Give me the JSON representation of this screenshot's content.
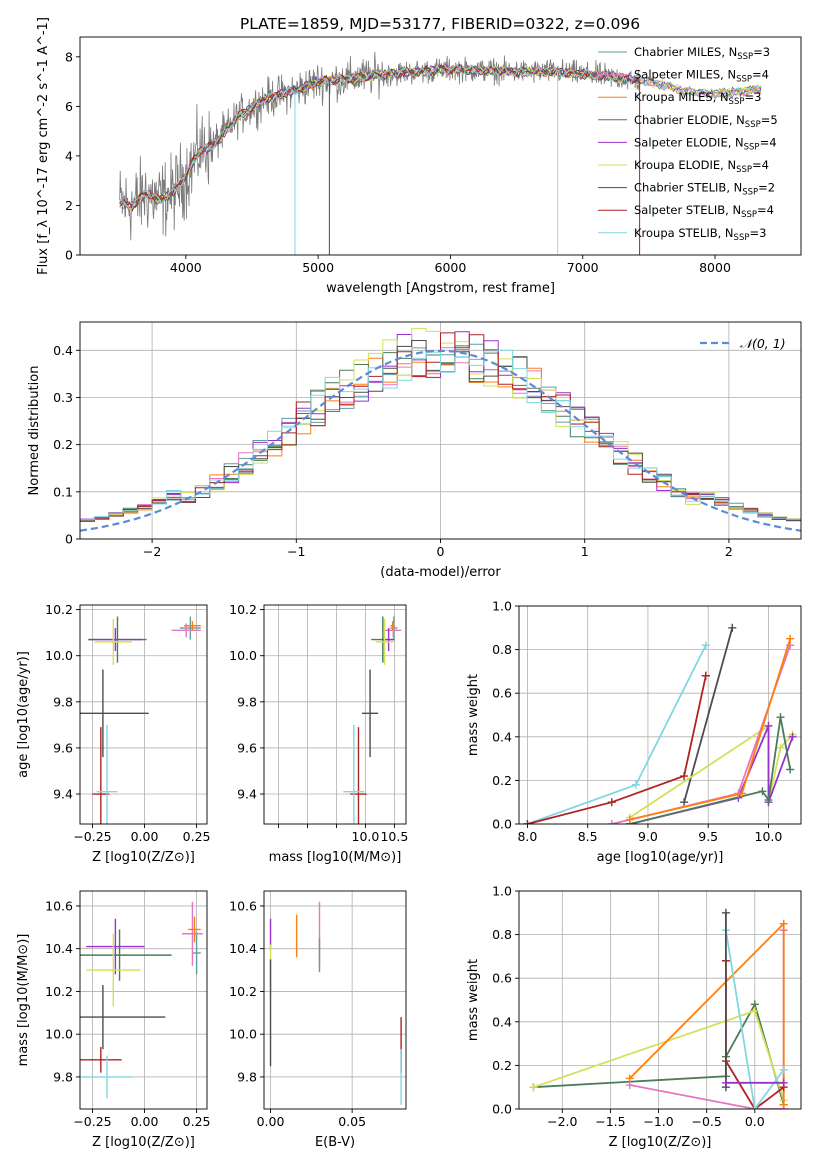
{
  "figure": {
    "title": "PLATE=1859, MJD=53177, FIBERID=0322, z=0.096"
  },
  "colors": {
    "chabrier_miles": "#5f9ea0",
    "salpeter_miles": "#e377c2",
    "kroupa_miles": "#ff7f0e",
    "chabrier_elodie": "#4a7c59",
    "salpeter_elodie": "#9932cc",
    "kroupa_elodie": "#d4e157",
    "chabrier_stelib": "#4d4d4d",
    "salpeter_stelib": "#b22222",
    "kroupa_stelib": "#80d8e0",
    "normal_curve": "#5b8bd8"
  },
  "chart_data": [
    {
      "id": "spectrum",
      "type": "line",
      "xlabel": "wavelength [Angstrom, rest frame]",
      "ylabel": "Flux [f_λ 10^-17 erg cm^-2 s^-1 A^-1]",
      "xlim": [
        3200,
        8650
      ],
      "ylim": [
        0,
        8.8
      ],
      "xticks": [
        4000,
        5000,
        6000,
        7000,
        8000
      ],
      "yticks": [
        0,
        2,
        4,
        6,
        8
      ],
      "legend_position": "top-right",
      "series": [
        {
          "name": "Chabrier MILES, N_SSP=3",
          "key": "chabrier_miles"
        },
        {
          "name": "Salpeter MILES, N_SSP=4",
          "key": "salpeter_miles"
        },
        {
          "name": "Kroupa MILES, N_SSP=3",
          "key": "kroupa_miles"
        },
        {
          "name": "Chabrier ELODIE, N_SSP=5",
          "key": "chabrier_elodie"
        },
        {
          "name": "Salpeter ELODIE, N_SSP=4",
          "key": "salpeter_elodie"
        },
        {
          "name": "Kroupa ELODIE, N_SSP=4",
          "key": "kroupa_elodie"
        },
        {
          "name": "Chabrier STELIB, N_SSP=2",
          "key": "chabrier_stelib"
        },
        {
          "name": "Salpeter STELIB, N_SSP=4",
          "key": "salpeter_stelib"
        },
        {
          "name": "Kroupa STELIB, N_SSP=3",
          "key": "kroupa_stelib"
        }
      ],
      "continuum": {
        "x": [
          3500,
          3600,
          3700,
          3800,
          3900,
          4000,
          4100,
          4200,
          4400,
          4600,
          4800,
          5000,
          5200,
          5500,
          6000,
          6500,
          6800,
          7000,
          7200,
          7500,
          7800,
          8000,
          8200,
          8350
        ],
        "y": [
          2.1,
          2.0,
          2.5,
          2.2,
          2.5,
          3.2,
          4.2,
          4.4,
          5.6,
          6.3,
          6.6,
          7.0,
          7.1,
          7.3,
          7.5,
          7.4,
          7.4,
          7.3,
          7.2,
          7.0,
          6.6,
          6.5,
          6.6,
          6.7
        ]
      }
    },
    {
      "id": "residuals",
      "type": "bar",
      "xlabel": "(data-model)/error",
      "ylabel": "Normed distribution",
      "xlim": [
        -2.5,
        2.5
      ],
      "ylim": [
        0,
        0.46
      ],
      "xticks": [
        -2,
        -1,
        0,
        1,
        2
      ],
      "yticks": [
        0.0,
        0.1,
        0.2,
        0.3,
        0.4
      ],
      "grid": true,
      "legend": "𝒩(0, 1)",
      "legend_position": "top-right"
    },
    {
      "id": "age_vs_Z",
      "type": "scatter",
      "xlabel": "Z [log10(Z/Z⊙)]",
      "ylabel": "age [log10(age/yr)]",
      "xlim": [
        -0.31,
        0.3
      ],
      "ylim": [
        9.27,
        10.22
      ],
      "xticks": [
        -0.25,
        0.0,
        0.25
      ],
      "yticks": [
        9.4,
        9.6,
        9.8,
        10.0,
        10.2
      ],
      "grid": true,
      "points": [
        {
          "key": "chabrier_miles",
          "x": 0.22,
          "y": 10.12,
          "xerr": 0.05,
          "yerr": 0.05
        },
        {
          "key": "salpeter_miles",
          "x": 0.2,
          "y": 10.11,
          "xerr": 0.07,
          "yerr": 0.03
        },
        {
          "key": "kroupa_miles",
          "x": 0.23,
          "y": 10.13,
          "xerr": 0.04,
          "yerr": 0.02
        },
        {
          "key": "chabrier_elodie",
          "x": -0.13,
          "y": 10.07,
          "xerr": 0.14,
          "yerr": 0.1
        },
        {
          "key": "salpeter_elodie",
          "x": -0.14,
          "y": 10.07,
          "xerr": 0.13,
          "yerr": 0.05
        },
        {
          "key": "kroupa_elodie",
          "x": -0.15,
          "y": 10.06,
          "xerr": 0.09,
          "yerr": 0.1
        },
        {
          "key": "chabrier_stelib",
          "x": -0.2,
          "y": 9.75,
          "xerr": 0.22,
          "yerr": 0.19
        },
        {
          "key": "salpeter_stelib",
          "x": -0.21,
          "y": 9.4,
          "xerr": 0.04,
          "yerr": 0.29
        },
        {
          "key": "kroupa_stelib",
          "x": -0.18,
          "y": 9.41,
          "xerr": 0.05,
          "yerr": 0.29
        }
      ]
    },
    {
      "id": "age_vs_mass",
      "type": "scatter",
      "xlabel": "mass [log10(M/M⊙)]",
      "xlim": [
        8.25,
        10.7
      ],
      "ylim": [
        9.27,
        10.22
      ],
      "xticks": [
        8.5,
        9.0,
        9.5,
        10.0,
        10.5
      ],
      "xticklabels": [
        "",
        "",
        "",
        "10.0",
        "10.5"
      ],
      "yticks": [
        9.4,
        9.6,
        9.8,
        10.0,
        10.2
      ],
      "grid": true,
      "points": [
        {
          "key": "chabrier_miles",
          "x": 10.49,
          "y": 10.12,
          "xerr": 0.06,
          "yerr": 0.05
        },
        {
          "key": "salpeter_miles",
          "x": 10.48,
          "y": 10.11,
          "xerr": 0.14,
          "yerr": 0.03
        },
        {
          "key": "kroupa_miles",
          "x": 10.47,
          "y": 10.13,
          "xerr": 0.04,
          "yerr": 0.02
        },
        {
          "key": "chabrier_elodie",
          "x": 10.3,
          "y": 10.07,
          "xerr": 0.2,
          "yerr": 0.1
        },
        {
          "key": "salpeter_elodie",
          "x": 10.4,
          "y": 10.07,
          "xerr": 0.1,
          "yerr": 0.05
        },
        {
          "key": "kroupa_elodie",
          "x": 10.33,
          "y": 10.06,
          "xerr": 0.15,
          "yerr": 0.1
        },
        {
          "key": "chabrier_stelib",
          "x": 10.08,
          "y": 9.75,
          "xerr": 0.14,
          "yerr": 0.19
        },
        {
          "key": "salpeter_stelib",
          "x": 9.88,
          "y": 9.4,
          "xerr": 0.14,
          "yerr": 0.29
        },
        {
          "key": "kroupa_stelib",
          "x": 9.8,
          "y": 9.41,
          "xerr": 0.18,
          "yerr": 0.29
        }
      ]
    },
    {
      "id": "mass_weight_vs_age",
      "type": "line",
      "xlabel": "age [log10(age/yr)]",
      "ylabel": "mass weight",
      "xlim": [
        7.93,
        10.27
      ],
      "ylim": [
        0,
        1.0
      ],
      "xticks": [
        8.0,
        8.5,
        9.0,
        9.5,
        10.0
      ],
      "yticks": [
        0.0,
        0.2,
        0.4,
        0.6,
        0.8,
        1.0
      ],
      "grid": true,
      "series": [
        {
          "key": "kroupa_stelib",
          "x": [
            8.0,
            8.9,
            9.48
          ],
          "y": [
            0.0,
            0.18,
            0.82
          ]
        },
        {
          "key": "salpeter_stelib",
          "x": [
            8.0,
            8.7,
            9.3,
            9.48,
            9.48
          ],
          "y": [
            0.0,
            0.1,
            0.22,
            0.68,
            0.68
          ]
        },
        {
          "key": "chabrier_stelib",
          "x": [
            9.3,
            9.7
          ],
          "y": [
            0.1,
            0.9
          ]
        },
        {
          "key": "kroupa_elodie",
          "x": [
            8.85,
            10.0,
            10.0,
            10.1,
            10.2
          ],
          "y": [
            0.03,
            0.45,
            0.1,
            0.35,
            0.41
          ]
        },
        {
          "key": "salpeter_elodie",
          "x": [
            8.85,
            9.75,
            10.0,
            10.0,
            10.2
          ],
          "y": [
            0.0,
            0.12,
            0.45,
            0.1,
            0.4
          ]
        },
        {
          "key": "chabrier_elodie",
          "x": [
            8.85,
            9.95,
            10.0,
            10.1,
            10.18
          ],
          "y": [
            0.0,
            0.15,
            0.11,
            0.49,
            0.25
          ]
        },
        {
          "key": "salpeter_miles",
          "x": [
            8.7,
            9.75,
            10.18
          ],
          "y": [
            0.0,
            0.14,
            0.82
          ]
        },
        {
          "key": "kroupa_miles",
          "x": [
            8.85,
            9.78,
            10.18
          ],
          "y": [
            0.02,
            0.14,
            0.85
          ]
        }
      ]
    },
    {
      "id": "mass_vs_Z",
      "type": "scatter",
      "xlabel": "Z [log10(Z/Z⊙)]",
      "ylabel": "mass [log10(M/M⊙)]",
      "xlim": [
        -0.31,
        0.3
      ],
      "ylim": [
        9.65,
        10.67
      ],
      "xticks": [
        -0.25,
        0.0,
        0.25
      ],
      "yticks": [
        9.8,
        10.0,
        10.2,
        10.4,
        10.6
      ],
      "grid": true,
      "points": [
        {
          "key": "chabrier_miles",
          "x": 0.25,
          "y": 10.38,
          "xerr": 0.02,
          "yerr": 0.1
        },
        {
          "key": "salpeter_miles",
          "x": 0.23,
          "y": 10.47,
          "xerr": 0.05,
          "yerr": 0.15
        },
        {
          "key": "kroupa_miles",
          "x": 0.24,
          "y": 10.49,
          "xerr": 0.03,
          "yerr": 0.06
        },
        {
          "key": "chabrier_elodie",
          "x": -0.12,
          "y": 10.37,
          "xerr": 0.25,
          "yerr": 0.12
        },
        {
          "key": "salpeter_elodie",
          "x": -0.14,
          "y": 10.41,
          "xerr": 0.14,
          "yerr": 0.13
        },
        {
          "key": "kroupa_elodie",
          "x": -0.15,
          "y": 10.3,
          "xerr": 0.13,
          "yerr": 0.17
        },
        {
          "key": "chabrier_stelib",
          "x": -0.2,
          "y": 10.08,
          "xerr": 0.3,
          "yerr": 0.15
        },
        {
          "key": "salpeter_stelib",
          "x": -0.21,
          "y": 9.88,
          "xerr": 0.1,
          "yerr": 0.06
        },
        {
          "key": "kroupa_stelib",
          "x": -0.18,
          "y": 9.8,
          "xerr": 0.12,
          "yerr": 0.1
        }
      ]
    },
    {
      "id": "mass_vs_EBV",
      "type": "scatter",
      "xlabel": "E(B-V)",
      "xlim": [
        -0.004,
        0.083
      ],
      "ylim": [
        9.65,
        10.67
      ],
      "xticks": [
        0.0,
        0.05
      ],
      "xticklabels": [
        "0.00",
        "0.05"
      ],
      "yticks": [
        9.8,
        10.0,
        10.2,
        10.4,
        10.6
      ],
      "grid": true,
      "points": [
        {
          "key": "salpeter_miles",
          "x": 0.03,
          "y": 10.47,
          "yerr": 0.15
        },
        {
          "key": "chabrier_miles",
          "x": 0.03,
          "y": 10.37,
          "yerr": 0.08
        },
        {
          "key": "kroupa_miles",
          "x": 0.016,
          "y": 10.46,
          "yerr": 0.1
        },
        {
          "key": "salpeter_elodie",
          "x": 0.0,
          "y": 10.47,
          "yerr": 0.07
        },
        {
          "key": "kroupa_elodie",
          "x": 0.0,
          "y": 10.3,
          "yerr": 0.12
        },
        {
          "key": "chabrier_stelib",
          "x": 0.0,
          "y": 10.1,
          "yerr": 0.25
        },
        {
          "key": "salpeter_stelib",
          "x": 0.08,
          "y": 9.95,
          "yerr": 0.13
        },
        {
          "key": "kroupa_stelib",
          "x": 0.08,
          "y": 9.8,
          "yerr": 0.13
        }
      ]
    },
    {
      "id": "mass_weight_vs_Z",
      "type": "line",
      "xlabel": "Z [log10(Z/Z⊙)]",
      "ylabel": "mass weight",
      "xlim": [
        -2.45,
        0.48
      ],
      "ylim": [
        0,
        1.0
      ],
      "xticks": [
        -2.0,
        -1.5,
        -1.0,
        -0.5,
        0.0
      ],
      "yticks": [
        0.0,
        0.2,
        0.4,
        0.6,
        0.8,
        1.0
      ],
      "grid": true,
      "series": [
        {
          "key": "chabrier_elodie",
          "x": [
            -2.3,
            -0.3,
            -0.3,
            0.0,
            0.3
          ],
          "y": [
            0.1,
            0.15,
            0.24,
            0.48,
            0.02
          ]
        },
        {
          "key": "kroupa_elodie",
          "x": [
            -2.3,
            0.0,
            0.3
          ],
          "y": [
            0.1,
            0.45,
            0.04
          ]
        },
        {
          "key": "salpeter_miles",
          "x": [
            -1.3,
            0.0,
            0.3,
            0.3
          ],
          "y": [
            0.11,
            0.0,
            0.0,
            0.82
          ]
        },
        {
          "key": "kroupa_miles",
          "x": [
            -1.3,
            0.3,
            0.3
          ],
          "y": [
            0.14,
            0.85,
            0.02
          ]
        },
        {
          "key": "salpeter_stelib",
          "x": [
            -0.3,
            -0.3,
            0.0,
            0.3
          ],
          "y": [
            0.68,
            0.22,
            0.0,
            0.1
          ]
        },
        {
          "key": "kroupa_stelib",
          "x": [
            -0.3,
            0.0,
            0.3
          ],
          "y": [
            0.82,
            0.0,
            0.18
          ]
        },
        {
          "key": "chabrier_stelib",
          "x": [
            -0.3,
            -0.3
          ],
          "y": [
            0.1,
            0.9
          ]
        },
        {
          "key": "salpeter_elodie",
          "x": [
            -0.3,
            0.3
          ],
          "y": [
            0.12,
            0.12
          ]
        }
      ]
    }
  ]
}
